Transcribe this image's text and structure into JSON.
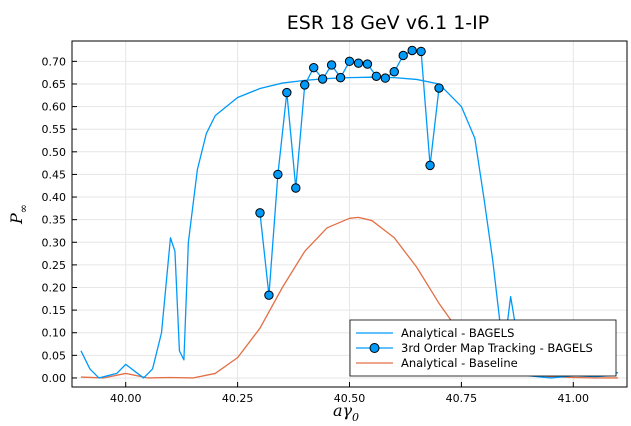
{
  "chart_data": {
    "type": "line",
    "title": "ESR 18 GeV v6.1 1-IP",
    "xlabel": "aγ",
    "xlabel_sub": "0",
    "ylabel": "P",
    "ylabel_sub": "∞",
    "xlim": [
      39.88,
      41.12
    ],
    "ylim": [
      -0.02,
      0.745
    ],
    "x_ticks": [
      40.0,
      40.25,
      40.5,
      40.75,
      41.0
    ],
    "x_tick_labels": [
      "40.00",
      "40.25",
      "40.50",
      "40.75",
      "41.00"
    ],
    "y_ticks": [
      0.0,
      0.05,
      0.1,
      0.15,
      0.2,
      0.25,
      0.3,
      0.35,
      0.4,
      0.45,
      0.5,
      0.55,
      0.6,
      0.65,
      0.7
    ],
    "y_tick_labels": [
      "0.00",
      "0.05",
      "0.10",
      "0.15",
      "0.20",
      "0.25",
      "0.30",
      "0.35",
      "0.40",
      "0.45",
      "0.50",
      "0.55",
      "0.60",
      "0.65",
      "0.70"
    ],
    "grid": true,
    "legend_position": "bottom-right",
    "series": [
      {
        "name": "Analytical - BAGELS",
        "color": "#009af9",
        "marker": false,
        "x": [
          39.9,
          39.92,
          39.94,
          39.96,
          39.98,
          40.0,
          40.02,
          40.04,
          40.06,
          40.08,
          40.1,
          40.11,
          40.12,
          40.13,
          40.14,
          40.16,
          40.18,
          40.2,
          40.25,
          40.3,
          40.35,
          40.4,
          40.45,
          40.5,
          40.55,
          40.6,
          40.65,
          40.7,
          40.75,
          40.78,
          40.8,
          40.82,
          40.84,
          40.85,
          40.86,
          40.87,
          40.88,
          40.9,
          40.95,
          41.0,
          41.05,
          41.08,
          41.1
        ],
        "y": [
          0.06,
          0.02,
          0.0,
          0.005,
          0.01,
          0.03,
          0.015,
          0.0,
          0.02,
          0.1,
          0.31,
          0.28,
          0.06,
          0.04,
          0.3,
          0.46,
          0.54,
          0.58,
          0.62,
          0.64,
          0.652,
          0.658,
          0.662,
          0.664,
          0.665,
          0.664,
          0.66,
          0.65,
          0.6,
          0.53,
          0.4,
          0.26,
          0.09,
          0.1,
          0.18,
          0.12,
          0.02,
          0.005,
          0.0,
          0.005,
          0.003,
          0.005,
          0.012
        ]
      },
      {
        "name": "3rd Order Map Tracking - BAGELS",
        "color": "#009af9",
        "marker": true,
        "x": [
          40.3,
          40.32,
          40.34,
          40.36,
          40.38,
          40.4,
          40.42,
          40.44,
          40.46,
          40.48,
          40.5,
          40.52,
          40.54,
          40.56,
          40.58,
          40.6,
          40.62,
          40.64,
          40.66,
          40.68,
          40.7
        ],
        "y": [
          0.365,
          0.183,
          0.45,
          0.631,
          0.42,
          0.648,
          0.686,
          0.661,
          0.692,
          0.664,
          0.7,
          0.696,
          0.694,
          0.667,
          0.663,
          0.677,
          0.713,
          0.724,
          0.722,
          0.47,
          0.641
        ]
      },
      {
        "name": "Analytical - Baseline",
        "color": "#e26f46",
        "marker": false,
        "x": [
          39.9,
          39.95,
          40.0,
          40.05,
          40.1,
          40.15,
          40.2,
          40.25,
          40.3,
          40.35,
          40.4,
          40.45,
          40.5,
          40.52,
          40.55,
          40.6,
          40.65,
          40.7,
          40.75,
          40.8,
          40.85,
          40.9,
          40.95,
          41.0,
          41.05,
          41.1
        ],
        "y": [
          0.002,
          0.0,
          0.01,
          0.0,
          0.001,
          0.0,
          0.01,
          0.045,
          0.11,
          0.2,
          0.28,
          0.332,
          0.353,
          0.355,
          0.348,
          0.31,
          0.245,
          0.165,
          0.095,
          0.045,
          0.02,
          0.008,
          0.003,
          0.001,
          0.0,
          0.0
        ]
      }
    ]
  }
}
